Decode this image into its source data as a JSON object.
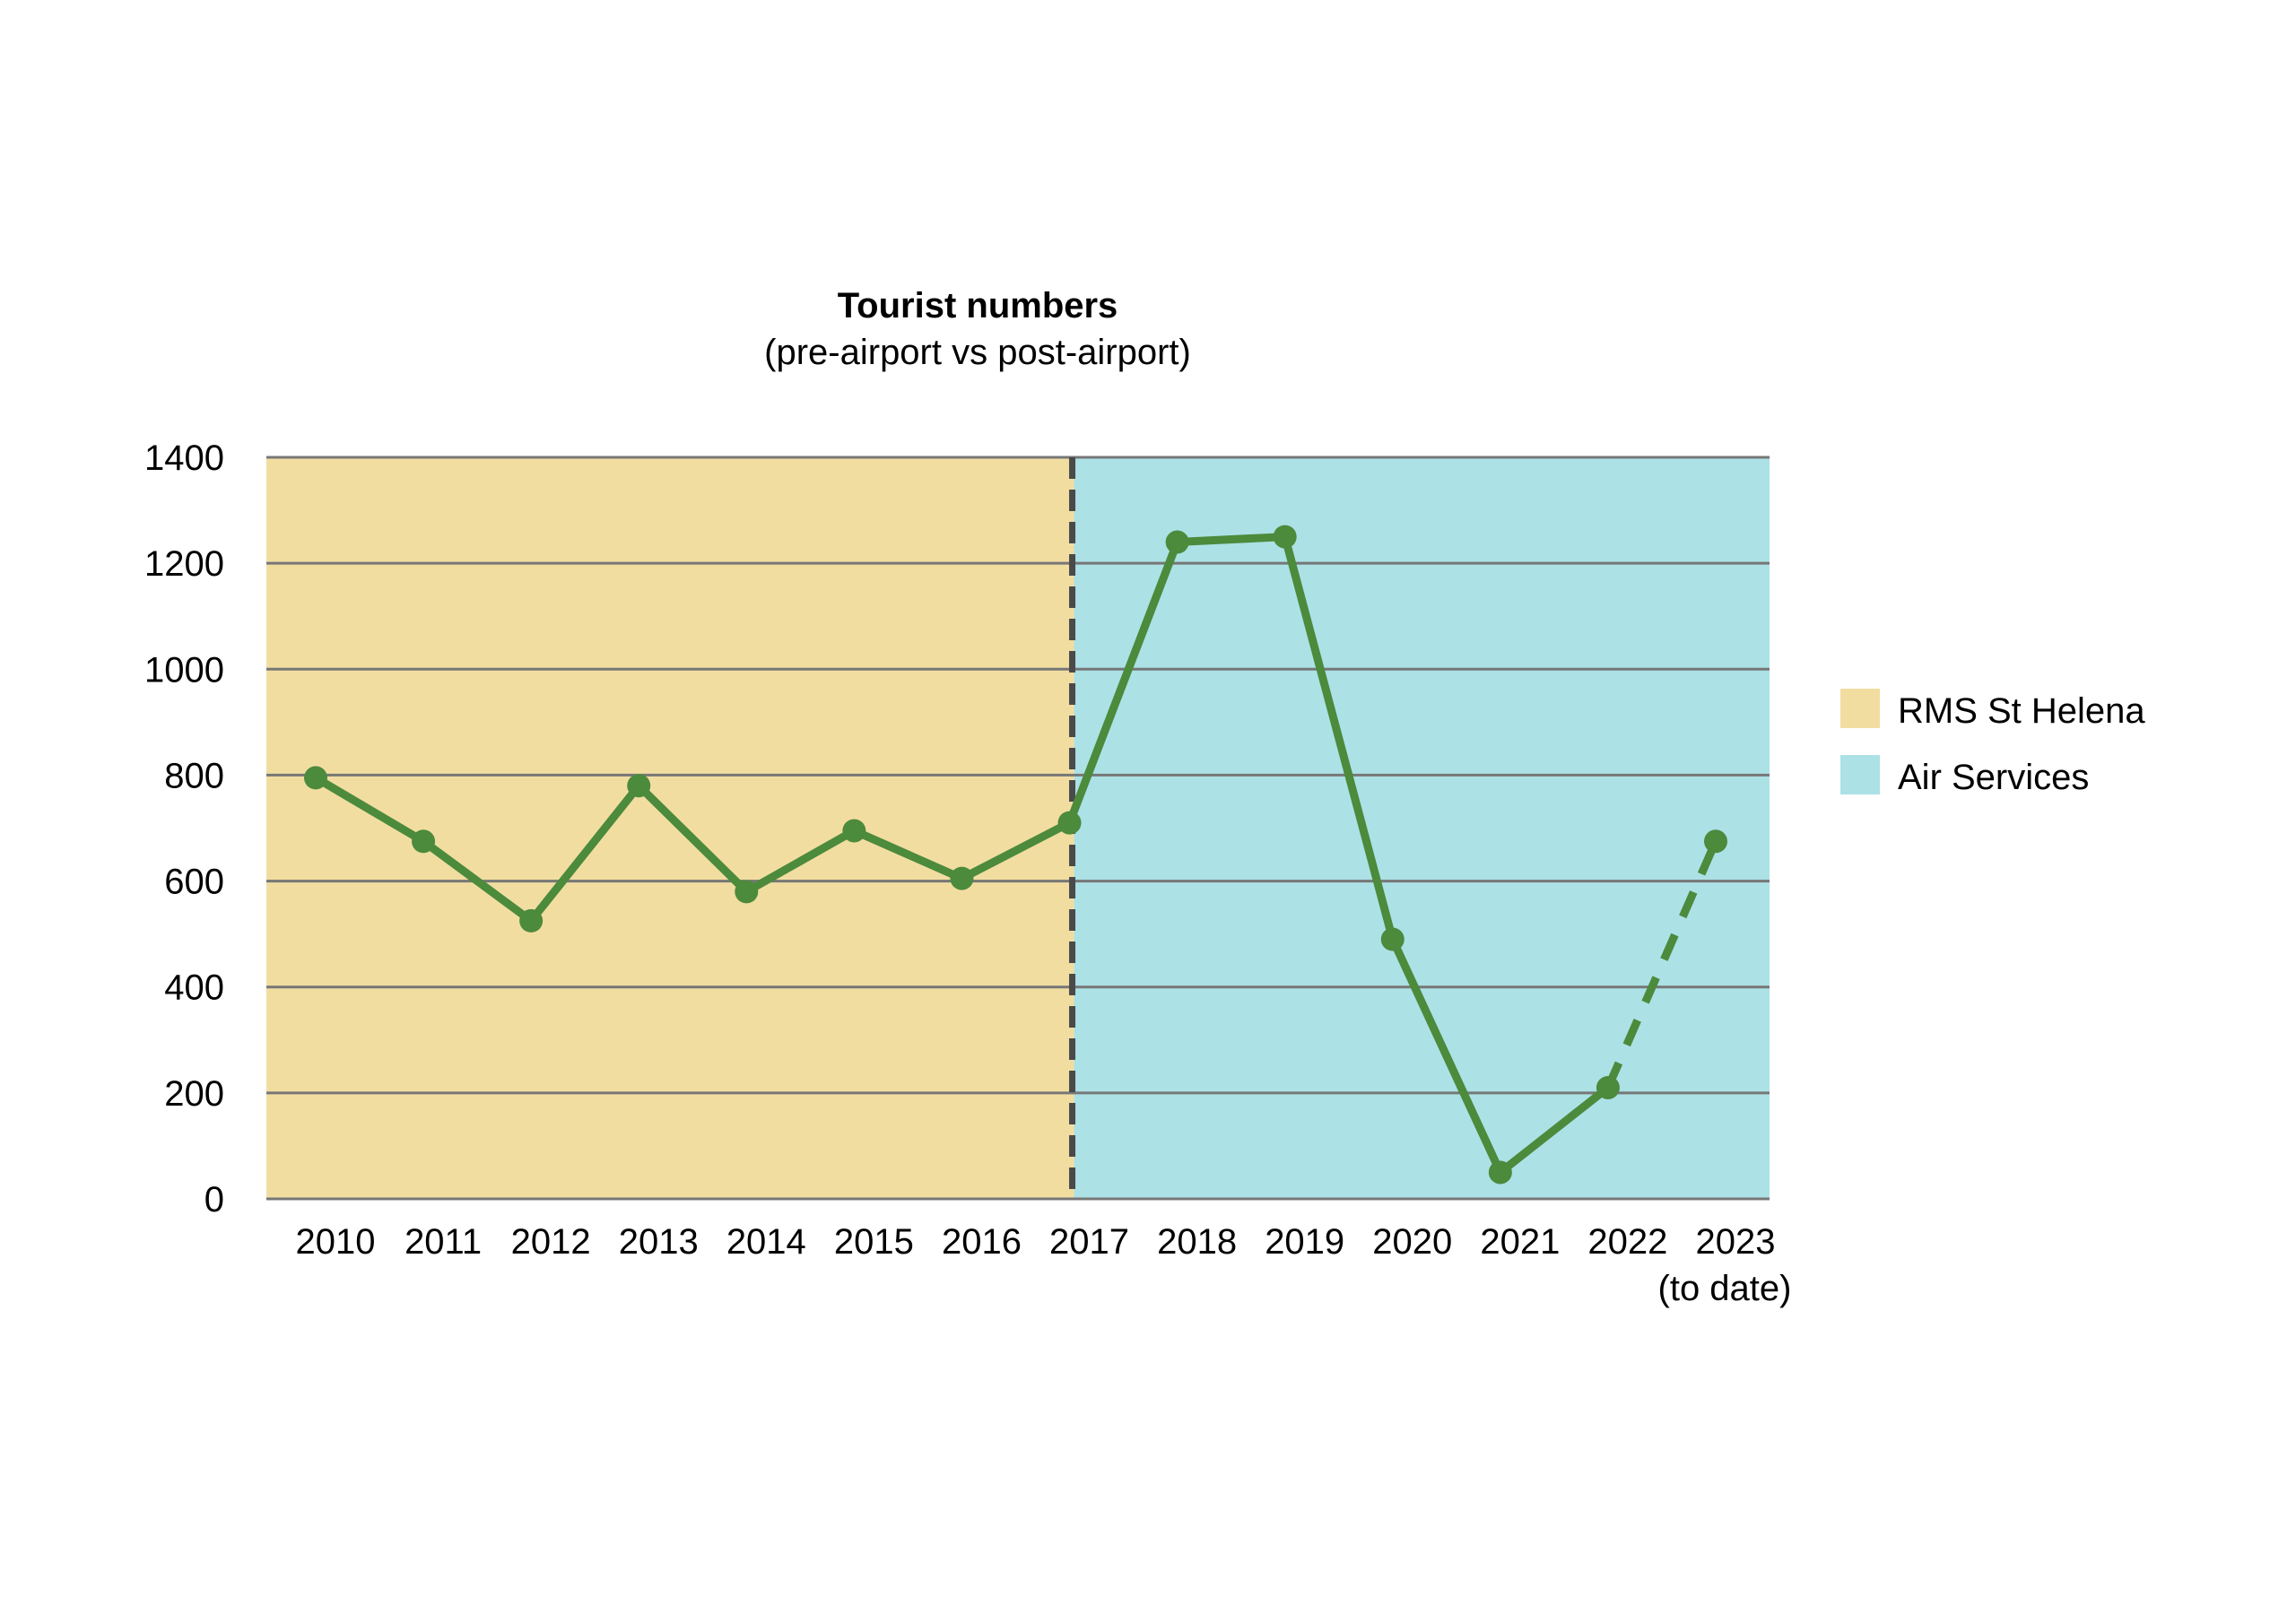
{
  "chart_data": {
    "type": "line",
    "title": "Tourist numbers",
    "subtitle": "(pre-airport vs post-airport)",
    "xlabel": "",
    "ylabel": "",
    "categories": [
      "2010",
      "2011",
      "2012",
      "2013",
      "2014",
      "2015",
      "2016",
      "2017",
      "2018",
      "2019",
      "2020",
      "2021",
      "2022",
      "2023"
    ],
    "category_note": "(to date)",
    "series": [
      {
        "name": "Tourist numbers",
        "values": [
          795,
          675,
          525,
          780,
          580,
          695,
          605,
          710,
          1240,
          1250,
          490,
          50,
          210,
          675
        ],
        "estimated_from_index": 12
      }
    ],
    "ylim": [
      0,
      1400
    ],
    "yticks": [
      0,
      200,
      400,
      600,
      800,
      1000,
      1200,
      1400
    ],
    "grid": true,
    "divider_after_category": "2017",
    "periods": [
      {
        "label": "RMS St Helena",
        "color": "#F2DDA1"
      },
      {
        "label": "Air Services",
        "color": "#ACE1E6"
      }
    ],
    "legend_position": "right",
    "colors": {
      "line": "#4C8A3C",
      "grid": "#777777",
      "divider": "#4A4A4A"
    }
  }
}
